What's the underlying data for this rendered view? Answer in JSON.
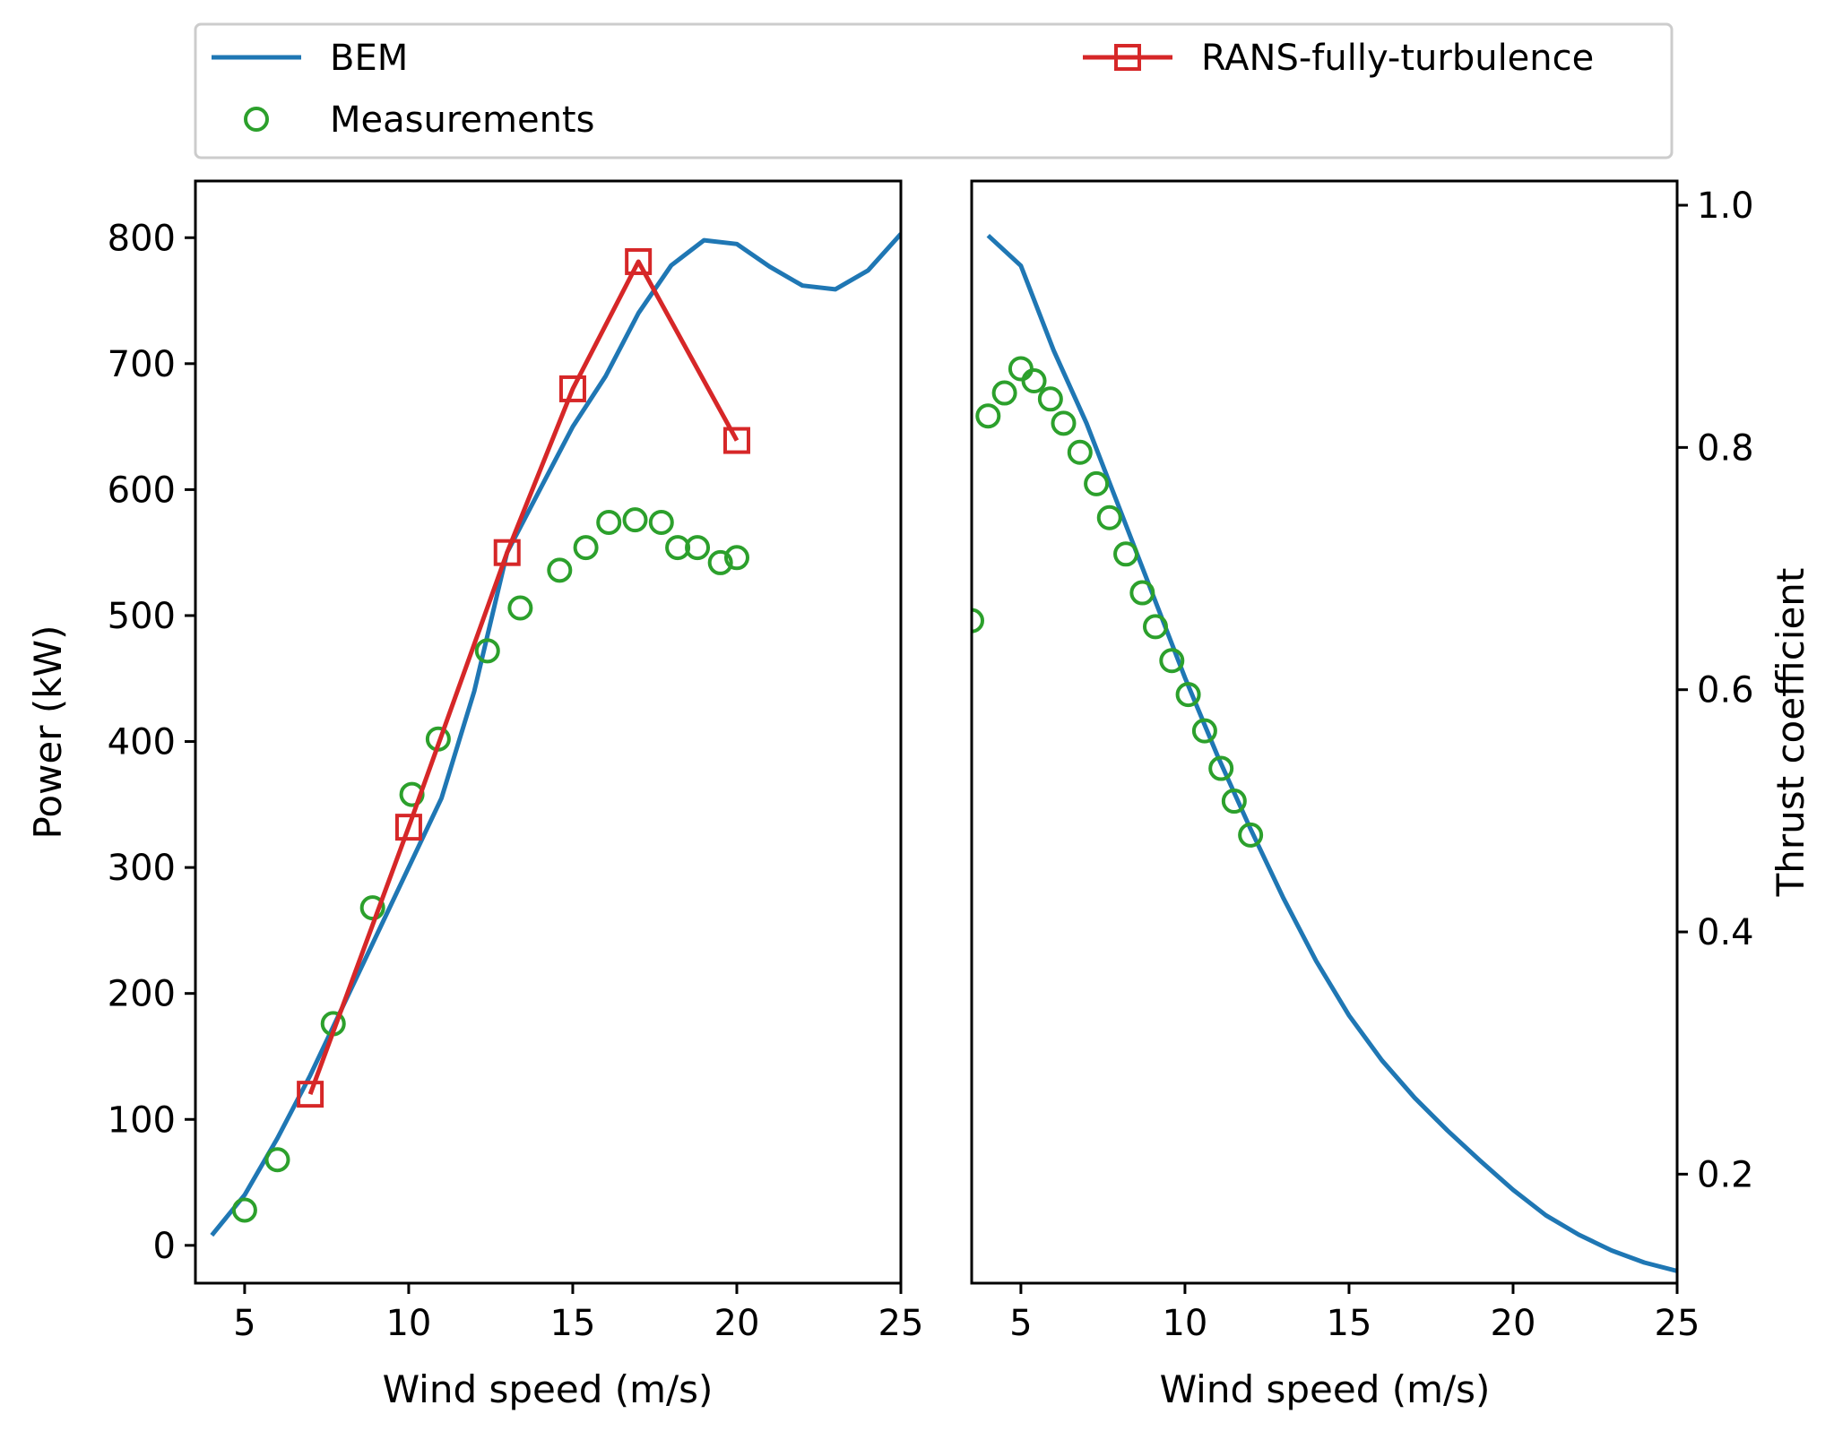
{
  "colors": {
    "bem": "#1f77b4",
    "measurements": "#2ca02c",
    "rans": "#d62728"
  },
  "legend": {
    "placement": "top",
    "entries": [
      {
        "label": "BEM",
        "series": "bem",
        "marker": "line"
      },
      {
        "label": "Measurements",
        "series": "measurements",
        "marker": "circle"
      },
      {
        "label": "RANS-fully-turbulence",
        "series": "rans",
        "marker": "line-square"
      }
    ]
  },
  "chart_data": [
    {
      "type": "line",
      "title": "",
      "xlabel": "Wind speed (m/s)",
      "ylabel": "Power (kW)",
      "xlim": [
        3.5,
        25
      ],
      "ylim": [
        -30,
        845
      ],
      "xticks": [
        5,
        10,
        15,
        20,
        25
      ],
      "yticks": [
        0,
        100,
        200,
        300,
        400,
        500,
        600,
        700,
        800
      ],
      "grid": false,
      "series": [
        {
          "name": "BEM",
          "key": "bem",
          "style": "line",
          "x": [
            4,
            5,
            6,
            7,
            8,
            9,
            10,
            11,
            12,
            13,
            14,
            15,
            16,
            17,
            18,
            19,
            20,
            21,
            22,
            23,
            24,
            25
          ],
          "y": [
            8,
            40,
            85,
            135,
            190,
            245,
            300,
            355,
            440,
            550,
            600,
            650,
            690,
            740,
            778,
            798,
            795,
            777,
            762,
            759,
            774,
            803
          ]
        },
        {
          "name": "Measurements",
          "key": "measurements",
          "style": "circle",
          "x": [
            5,
            6,
            7.7,
            8.9,
            10.1,
            10.9,
            12.4,
            13.4,
            14.6,
            15.4,
            16.1,
            16.9,
            17.7,
            18.2,
            18.8,
            19.5,
            20
          ],
          "y": [
            28,
            68,
            176,
            268,
            358,
            402,
            472,
            506,
            536,
            554,
            574,
            576,
            574,
            554,
            554,
            542,
            546
          ]
        },
        {
          "name": "RANS-fully-turbulence",
          "key": "rans",
          "style": "line-square",
          "x": [
            7,
            10,
            13,
            15,
            17,
            20
          ],
          "y": [
            120,
            332,
            550,
            680,
            781,
            639
          ]
        }
      ]
    },
    {
      "type": "line",
      "title": "",
      "xlabel": "Wind speed (m/s)",
      "ylabel": "Thrust coefficient",
      "ylabel_side": "right",
      "xlim": [
        3.5,
        25
      ],
      "ylim": [
        0.11,
        1.02
      ],
      "xticks": [
        5,
        10,
        15,
        20,
        25
      ],
      "yticks": [
        0.2,
        0.4,
        0.6,
        0.8,
        1.0
      ],
      "ytick_labels": [
        "0.2",
        "0.4",
        "0.6",
        "0.8",
        "1.0"
      ],
      "grid": false,
      "series": [
        {
          "name": "BEM",
          "key": "bem",
          "style": "line",
          "x": [
            4,
            5,
            6,
            7,
            8,
            9,
            10,
            11,
            12,
            13,
            14,
            15,
            16,
            17,
            18,
            19,
            20,
            21,
            22,
            23,
            24,
            25
          ],
          "y": [
            0.975,
            0.95,
            0.88,
            0.82,
            0.75,
            0.68,
            0.61,
            0.545,
            0.485,
            0.428,
            0.376,
            0.331,
            0.294,
            0.263,
            0.236,
            0.211,
            0.187,
            0.166,
            0.15,
            0.137,
            0.127,
            0.12
          ]
        },
        {
          "name": "Measurements",
          "key": "measurements",
          "style": "circle",
          "x": [
            3.5,
            4,
            4.5,
            5,
            5.4,
            5.9,
            6.3,
            6.8,
            7.3,
            7.7,
            8.2,
            8.7,
            9.1,
            9.6,
            10.1,
            10.6,
            11.1,
            11.5,
            12
          ],
          "y": [
            0.657,
            0.826,
            0.845,
            0.865,
            0.855,
            0.84,
            0.82,
            0.796,
            0.77,
            0.742,
            0.712,
            0.68,
            0.652,
            0.624,
            0.596,
            0.566,
            0.535,
            0.508,
            0.48
          ]
        }
      ]
    }
  ]
}
